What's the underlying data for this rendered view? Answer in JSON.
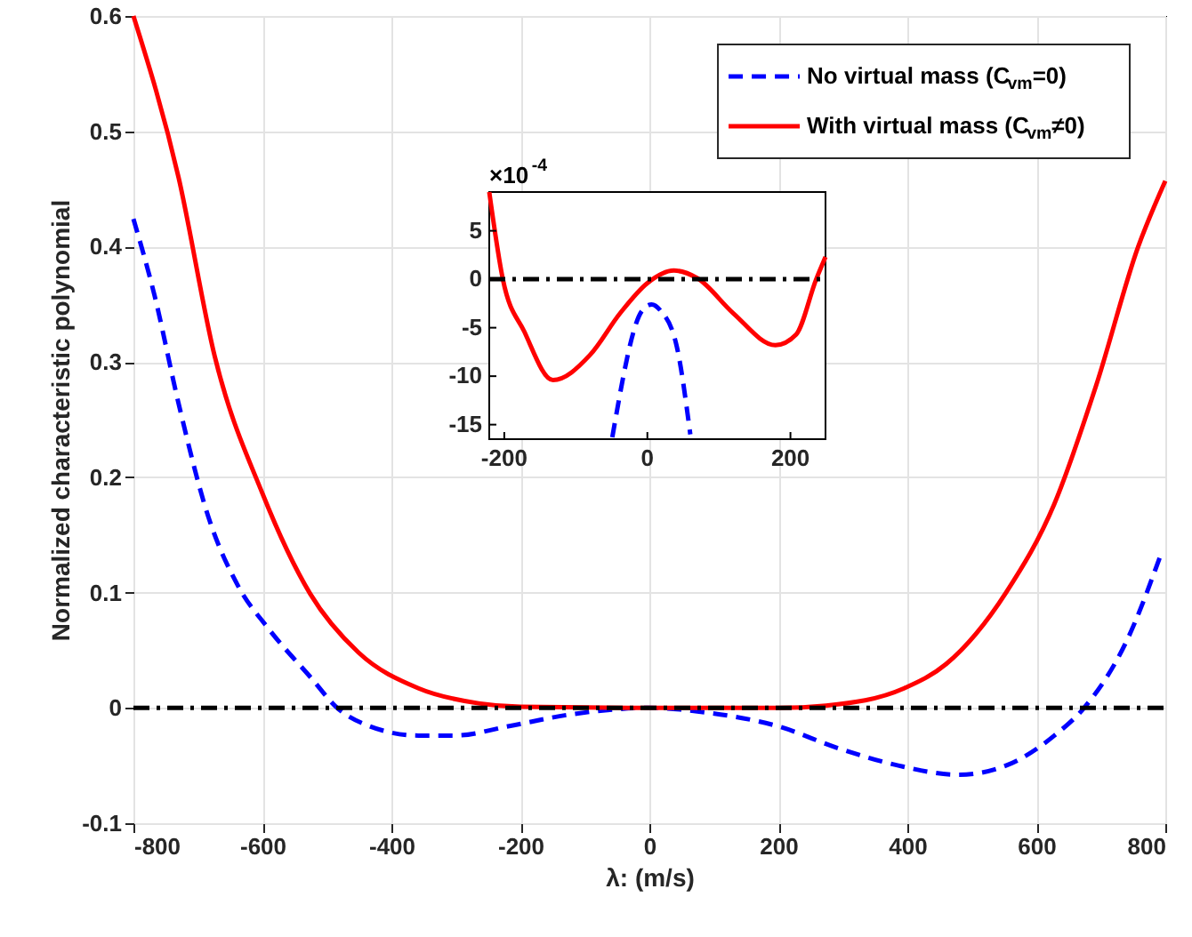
{
  "chart_data": [
    {
      "type": "line",
      "xlabel": "λ: (m/s)",
      "ylabel": "Normalized characteristic polynomial",
      "xlim": [
        -800,
        800
      ],
      "ylim": [
        -0.1,
        0.6
      ],
      "xticks": [
        -800,
        -600,
        -400,
        -200,
        0,
        200,
        400,
        600,
        800
      ],
      "yticks": [
        -0.1,
        0,
        0.1,
        0.2,
        0.3,
        0.4,
        0.5,
        0.6
      ],
      "grid": true,
      "legend": "top right",
      "series": [
        {
          "name": "No virtual mass (C$_{vm}$=0)",
          "color": "#0000ff",
          "line_style": "dashed",
          "x": [
            -800,
            -767,
            -730,
            -684,
            -637,
            -591,
            -526,
            -484,
            -433,
            -358,
            -302,
            -219,
            -126,
            0,
            88,
            200,
            293,
            386,
            479,
            553,
            628,
            674,
            740,
            795
          ],
          "values": [
            0.424,
            0.357,
            0.264,
            0.166,
            0.105,
            0.069,
            0.027,
            0,
            -0.016,
            -0.024,
            -0.024,
            -0.016,
            -0.006,
            0,
            -0.004,
            -0.016,
            -0.035,
            -0.05,
            -0.058,
            -0.05,
            -0.024,
            0,
            0.058,
            0.136
          ]
        },
        {
          "name": "With virtual mass (C$_{vm}$≠0)",
          "color": "#ff0000",
          "line_style": "solid",
          "x": [
            -800,
            -730,
            -674,
            -600,
            -526,
            -451,
            -358,
            -265,
            -200,
            0,
            200,
            274,
            395,
            460,
            553,
            628,
            693,
            758,
            800
          ],
          "values": [
            0.6,
            0.46,
            0.305,
            0.186,
            0.099,
            0.048,
            0.017,
            0.004,
            0.001,
            0,
            0,
            0.002,
            0.017,
            0.038,
            0.1,
            0.177,
            0.28,
            0.4,
            0.457
          ]
        }
      ],
      "ref_lines": [
        {
          "axis": "y",
          "value": 0,
          "color": "#000000",
          "line_style": "dashdot"
        }
      ]
    },
    {
      "type": "line",
      "xlim": [
        -221,
        249
      ],
      "ylim": [
        -16.5,
        9
      ],
      "xticks": [
        -200,
        0,
        200
      ],
      "yticks": [
        -15,
        -10,
        -5,
        0,
        5
      ],
      "annotations": [
        "×10$^{-4}$"
      ],
      "series": [
        {
          "color": "#0000ff",
          "line_style": "dashed",
          "x": [
            -49,
            -7,
            6,
            18,
            41,
            60
          ],
          "values": [
            -16.3,
            -3.2,
            -2.6,
            -3.2,
            -6.9,
            -16
          ]
        },
        {
          "color": "#ff0000",
          "line_style": "solid",
          "x": [
            -221,
            -202,
            -172,
            -132,
            -80,
            -38,
            0,
            37,
            70,
            120,
            179,
            208,
            236,
            249
          ],
          "values": [
            9,
            0,
            -5.4,
            -10.4,
            -7.8,
            -3.5,
            -0.4,
            0.9,
            0.1,
            -3.5,
            -6.8,
            -5.7,
            0,
            2.3
          ]
        }
      ],
      "ref_lines": [
        {
          "axis": "y",
          "value": 0,
          "color": "#000000",
          "line_style": "dashdot"
        }
      ]
    }
  ]
}
